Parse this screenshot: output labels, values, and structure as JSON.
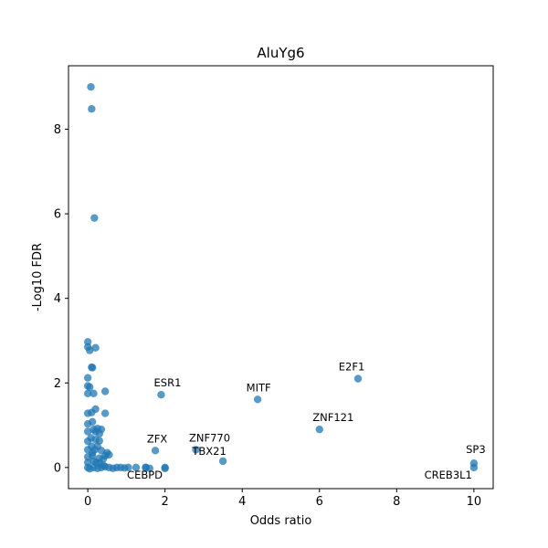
{
  "chart_data": {
    "type": "scatter",
    "title": "AluYg6",
    "xlabel": "Odds ratio",
    "ylabel": "-Log10 FDR",
    "xlim": [
      -0.5,
      10.5
    ],
    "ylim": [
      -0.5,
      9.5
    ],
    "xticks": [
      "0",
      "2",
      "4",
      "6",
      "8",
      "10"
    ],
    "yticks": [
      "0",
      "2",
      "4",
      "6",
      "8"
    ],
    "grid": false,
    "legend": "none",
    "point_color": "#1f77b4",
    "points": [
      {
        "x": 0.08,
        "y": 9.0
      },
      {
        "x": 0.1,
        "y": 8.48
      },
      {
        "x": 0.17,
        "y": 5.9
      },
      {
        "x": 0.0,
        "y": 2.97
      },
      {
        "x": 0.0,
        "y": 2.85
      },
      {
        "x": 0.05,
        "y": 2.77
      },
      {
        "x": 0.2,
        "y": 2.83
      },
      {
        "x": 0.1,
        "y": 2.37
      },
      {
        "x": 0.12,
        "y": 2.36
      },
      {
        "x": 0.0,
        "y": 2.12
      },
      {
        "x": 0.0,
        "y": 1.93
      },
      {
        "x": 0.05,
        "y": 1.9
      },
      {
        "x": 0.45,
        "y": 1.8
      },
      {
        "x": 0.0,
        "y": 1.75
      },
      {
        "x": 0.15,
        "y": 1.75
      },
      {
        "x": 0.2,
        "y": 1.38
      },
      {
        "x": 0.0,
        "y": 1.28
      },
      {
        "x": 0.1,
        "y": 1.3
      },
      {
        "x": 0.45,
        "y": 1.28
      },
      {
        "x": 0.0,
        "y": 1.03
      },
      {
        "x": 0.12,
        "y": 1.08
      },
      {
        "x": 0.15,
        "y": 0.9
      },
      {
        "x": 0.25,
        "y": 0.92
      },
      {
        "x": 0.35,
        "y": 0.9
      },
      {
        "x": 0.0,
        "y": 0.85
      },
      {
        "x": 0.2,
        "y": 0.85
      },
      {
        "x": 0.3,
        "y": 0.8
      },
      {
        "x": 0.08,
        "y": 0.7
      },
      {
        "x": 0.2,
        "y": 0.66
      },
      {
        "x": 0.3,
        "y": 0.63
      },
      {
        "x": 0.0,
        "y": 0.62
      },
      {
        "x": 0.1,
        "y": 0.5
      },
      {
        "x": 0.25,
        "y": 0.5
      },
      {
        "x": 0.0,
        "y": 0.42
      },
      {
        "x": 0.18,
        "y": 0.42
      },
      {
        "x": 0.35,
        "y": 0.4
      },
      {
        "x": 0.5,
        "y": 0.35
      },
      {
        "x": 0.45,
        "y": 0.28
      },
      {
        "x": 0.55,
        "y": 0.3
      },
      {
        "x": 0.0,
        "y": 0.25
      },
      {
        "x": 0.12,
        "y": 0.28
      },
      {
        "x": 0.3,
        "y": 0.22
      },
      {
        "x": 0.4,
        "y": 0.2
      },
      {
        "x": 0.0,
        "y": 0.12
      },
      {
        "x": 0.15,
        "y": 0.15
      },
      {
        "x": 0.3,
        "y": 0.1
      },
      {
        "x": 0.0,
        "y": 0.0
      },
      {
        "x": 0.05,
        "y": -0.03
      },
      {
        "x": 0.15,
        "y": 0.0
      },
      {
        "x": 0.25,
        "y": -0.02
      },
      {
        "x": 0.35,
        "y": 0.0
      },
      {
        "x": 0.45,
        "y": 0.02
      },
      {
        "x": 0.55,
        "y": 0.0
      },
      {
        "x": 0.65,
        "y": -0.02
      },
      {
        "x": 0.75,
        "y": 0.0
      },
      {
        "x": 0.85,
        "y": 0.0
      },
      {
        "x": 0.95,
        "y": -0.01
      },
      {
        "x": 1.05,
        "y": 0.0
      },
      {
        "x": 1.25,
        "y": 0.0
      },
      {
        "x": 1.5,
        "y": 0.0
      },
      {
        "x": 1.6,
        "y": -0.02
      },
      {
        "x": 2.0,
        "y": 0.0
      },
      {
        "x": 2.0,
        "y": -0.02
      },
      {
        "x": 0.12,
        "y": 0.35
      },
      {
        "x": 0.22,
        "y": 0.12
      },
      {
        "x": 0.4,
        "y": 0.05
      }
    ],
    "labeled_points": [
      {
        "label": "ESR1",
        "x": 1.9,
        "y": 1.72
      },
      {
        "label": "MITF",
        "x": 4.4,
        "y": 1.61
      },
      {
        "label": "E2F1",
        "x": 7.0,
        "y": 2.1
      },
      {
        "label": "ZNF121",
        "x": 6.0,
        "y": 0.9
      },
      {
        "label": "ZFX",
        "x": 1.75,
        "y": 0.4
      },
      {
        "label": "ZNF770",
        "x": 2.8,
        "y": 0.42
      },
      {
        "label": "TBX21",
        "x": 3.5,
        "y": 0.15
      },
      {
        "label": "CEBPD",
        "x": 1.5,
        "y": 0.0
      },
      {
        "label": "SP3",
        "x": 10.0,
        "y": 0.1
      },
      {
        "label": "CREB3L1",
        "x": 10.0,
        "y": 0.0
      }
    ]
  }
}
